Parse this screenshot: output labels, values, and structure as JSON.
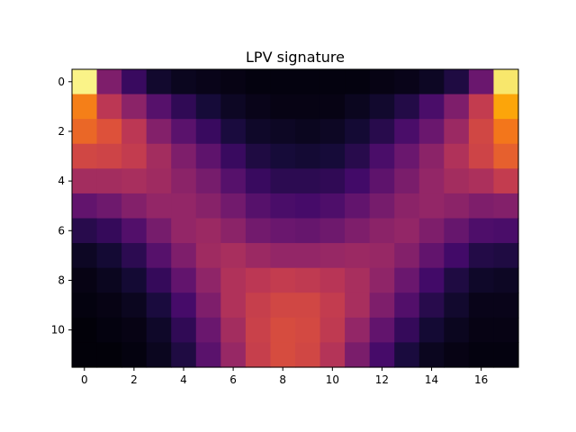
{
  "chart_data": {
    "type": "heatmap",
    "title": "LPV signature",
    "xlabel": "",
    "ylabel": "",
    "colormap": "inferno",
    "vmin": 0,
    "vmax": 1,
    "x_ticks": [
      0,
      2,
      4,
      6,
      8,
      10,
      12,
      14,
      16
    ],
    "y_ticks": [
      0,
      2,
      4,
      6,
      8,
      10
    ],
    "x_range": [
      -0.5,
      17.5
    ],
    "y_range": [
      11.5,
      -0.5
    ],
    "grid": false,
    "values": [
      [
        0.97,
        0.35,
        0.18,
        0.08,
        0.05,
        0.04,
        0.03,
        0.02,
        0.02,
        0.02,
        0.02,
        0.02,
        0.03,
        0.04,
        0.06,
        0.12,
        0.3,
        0.94
      ],
      [
        0.72,
        0.5,
        0.38,
        0.25,
        0.16,
        0.1,
        0.06,
        0.04,
        0.03,
        0.03,
        0.03,
        0.05,
        0.08,
        0.13,
        0.22,
        0.35,
        0.52,
        0.8
      ],
      [
        0.66,
        0.6,
        0.5,
        0.36,
        0.26,
        0.18,
        0.11,
        0.07,
        0.06,
        0.05,
        0.06,
        0.09,
        0.14,
        0.22,
        0.3,
        0.42,
        0.56,
        0.7
      ],
      [
        0.56,
        0.55,
        0.52,
        0.44,
        0.35,
        0.27,
        0.18,
        0.12,
        0.1,
        0.09,
        0.1,
        0.14,
        0.22,
        0.3,
        0.38,
        0.47,
        0.55,
        0.64
      ],
      [
        0.44,
        0.44,
        0.45,
        0.43,
        0.38,
        0.33,
        0.25,
        0.18,
        0.15,
        0.15,
        0.16,
        0.2,
        0.27,
        0.34,
        0.4,
        0.44,
        0.46,
        0.52
      ],
      [
        0.28,
        0.31,
        0.36,
        0.4,
        0.4,
        0.37,
        0.32,
        0.25,
        0.22,
        0.21,
        0.23,
        0.28,
        0.33,
        0.38,
        0.4,
        0.38,
        0.35,
        0.36
      ],
      [
        0.14,
        0.17,
        0.24,
        0.33,
        0.4,
        0.42,
        0.38,
        0.32,
        0.3,
        0.29,
        0.31,
        0.35,
        0.38,
        0.4,
        0.35,
        0.29,
        0.23,
        0.22
      ],
      [
        0.06,
        0.09,
        0.15,
        0.25,
        0.35,
        0.43,
        0.45,
        0.42,
        0.4,
        0.4,
        0.41,
        0.42,
        0.41,
        0.36,
        0.28,
        0.2,
        0.13,
        0.12
      ],
      [
        0.03,
        0.05,
        0.09,
        0.17,
        0.28,
        0.39,
        0.47,
        0.5,
        0.52,
        0.51,
        0.49,
        0.45,
        0.39,
        0.3,
        0.2,
        0.12,
        0.07,
        0.06
      ],
      [
        0.02,
        0.03,
        0.05,
        0.11,
        0.21,
        0.35,
        0.47,
        0.53,
        0.56,
        0.56,
        0.52,
        0.45,
        0.35,
        0.24,
        0.14,
        0.08,
        0.04,
        0.04
      ],
      [
        0.01,
        0.02,
        0.03,
        0.07,
        0.16,
        0.3,
        0.44,
        0.54,
        0.58,
        0.57,
        0.51,
        0.4,
        0.28,
        0.17,
        0.09,
        0.05,
        0.03,
        0.03
      ],
      [
        0.01,
        0.01,
        0.02,
        0.05,
        0.12,
        0.26,
        0.41,
        0.53,
        0.58,
        0.56,
        0.48,
        0.34,
        0.21,
        0.11,
        0.05,
        0.03,
        0.02,
        0.02
      ]
    ]
  }
}
